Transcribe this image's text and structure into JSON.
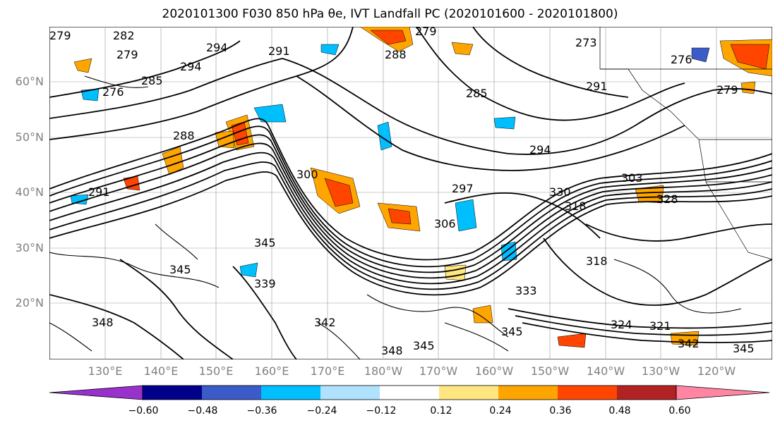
{
  "title": "2020101300 F030 850 hPa θe, IVT Landfall PC (2020101600 - 2020101800)",
  "map": {
    "lat_labels": [
      "60°N",
      "50°N",
      "40°N",
      "30°N",
      "20°N"
    ],
    "lon_labels": [
      "130°E",
      "140°E",
      "150°E",
      "160°E",
      "170°E",
      "180°W",
      "170°W",
      "160°W",
      "150°W",
      "140°W",
      "130°W",
      "120°W"
    ],
    "contour_labels": [
      {
        "text": "279"
      },
      {
        "text": "282"
      },
      {
        "text": "279"
      },
      {
        "text": "276"
      },
      {
        "text": "285"
      },
      {
        "text": "294"
      },
      {
        "text": "294"
      },
      {
        "text": "291"
      },
      {
        "text": "288"
      },
      {
        "text": "279"
      },
      {
        "text": "273"
      },
      {
        "text": "276"
      },
      {
        "text": "279"
      },
      {
        "text": "291"
      },
      {
        "text": "285"
      },
      {
        "text": "294"
      },
      {
        "text": "303"
      },
      {
        "text": "300"
      },
      {
        "text": "297"
      },
      {
        "text": "306"
      },
      {
        "text": "330"
      },
      {
        "text": "318"
      },
      {
        "text": "328"
      },
      {
        "text": "318"
      },
      {
        "text": "345"
      },
      {
        "text": "345"
      },
      {
        "text": "339"
      },
      {
        "text": "348"
      },
      {
        "text": "342"
      },
      {
        "text": "348"
      },
      {
        "text": "345"
      },
      {
        "text": "345"
      },
      {
        "text": "333"
      },
      {
        "text": "324"
      },
      {
        "text": "321"
      },
      {
        "text": "345"
      },
      {
        "text": "342"
      },
      {
        "text": "291"
      },
      {
        "text": "288"
      }
    ]
  },
  "colorbar": {
    "ticks": [
      "−0.60",
      "−0.48",
      "−0.36",
      "−0.24",
      "−0.12",
      "0.12",
      "0.24",
      "0.36",
      "0.48",
      "0.60"
    ],
    "colors": [
      "#9932cc",
      "#00008b",
      "#3a5bc8",
      "#00bfff",
      "#b0e2ff",
      "#ffffff",
      "#ffe680",
      "#ffa500",
      "#ff4500",
      "#b22222",
      "#ff85a2"
    ]
  }
}
